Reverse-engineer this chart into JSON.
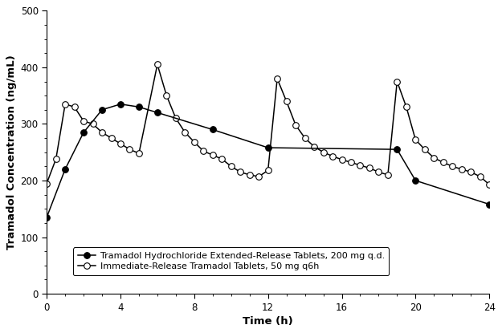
{
  "er_x": [
    0,
    1,
    2,
    3,
    4,
    5,
    6,
    9,
    12,
    19,
    20,
    24
  ],
  "er_y": [
    135,
    220,
    285,
    325,
    335,
    330,
    320,
    290,
    258,
    255,
    200,
    158
  ],
  "ir_x": [
    0,
    0.5,
    1,
    1.5,
    2,
    2.5,
    3,
    3.5,
    4,
    4.5,
    5,
    6,
    6.5,
    7,
    7.5,
    8,
    8.5,
    9,
    9.5,
    10,
    10.5,
    11,
    11.5,
    12,
    12.5,
    13,
    13.5,
    14,
    14.5,
    15,
    15.5,
    16,
    16.5,
    17,
    17.5,
    18,
    18.5,
    19,
    19.5,
    20,
    20.5,
    21,
    21.5,
    22,
    22.5,
    23,
    23.5,
    24
  ],
  "ir_y": [
    195,
    238,
    335,
    330,
    305,
    300,
    285,
    275,
    265,
    255,
    248,
    405,
    350,
    310,
    285,
    268,
    252,
    245,
    238,
    225,
    215,
    210,
    207,
    218,
    380,
    340,
    298,
    275,
    260,
    250,
    243,
    237,
    232,
    227,
    222,
    215,
    210,
    375,
    330,
    272,
    255,
    240,
    232,
    225,
    220,
    215,
    207,
    193
  ],
  "ylabel": "Tramadol Concentration (ng/mL)",
  "xlabel": "Time (h)",
  "ylim": [
    0,
    500
  ],
  "xlim": [
    0,
    24
  ],
  "yticks": [
    0,
    100,
    200,
    300,
    400,
    500
  ],
  "xticks": [
    0,
    4,
    8,
    12,
    16,
    20,
    24
  ],
  "er_label": "Tramadol Hydrochloride Extended-Release Tablets, 200 mg q.d.",
  "ir_label": "Immediate-Release Tramadol Tablets, 50 mg q6h",
  "line_color": "#000000",
  "bg_color": "#ffffff",
  "er_markerfacecolor": "#000000",
  "ir_markerfacecolor": "#ffffff",
  "markersize": 5.5,
  "linewidth": 1.1,
  "label_fontsize": 9.5,
  "tick_fontsize": 8.5,
  "legend_fontsize": 8.0
}
